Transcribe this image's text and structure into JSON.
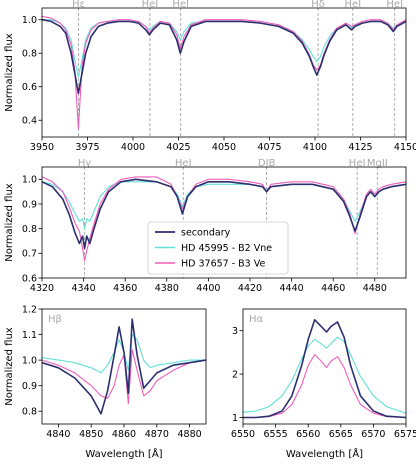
{
  "colors": {
    "secondary": "#2b2f6e",
    "hd45995": "#62e0d8",
    "hd37657": "#f05db9",
    "marker": "#9a9a9a"
  },
  "chart_data": [
    {
      "type": "line",
      "panel": "top",
      "xlim": [
        3950,
        4150
      ],
      "ylim": [
        0.3,
        1.07
      ],
      "xticks": [
        "3950",
        "3975",
        "4000",
        "4025",
        "4050",
        "4075",
        "4100",
        "4125",
        "4150"
      ],
      "yticks": [
        "0.4",
        "0.6",
        "0.8",
        "1.0"
      ],
      "ylabel": "Normalized flux",
      "xlabel": "",
      "line_markers": [
        {
          "x": 3970.1,
          "label": "Hε"
        },
        {
          "x": 4009.3,
          "label": "HeI"
        },
        {
          "x": 4026.2,
          "label": "HeI"
        },
        {
          "x": 4101.7,
          "label": "Hδ"
        },
        {
          "x": 4120.8,
          "label": "HeI"
        },
        {
          "x": 4143.8,
          "label": "HeI"
        }
      ],
      "x": [
        3950,
        3955,
        3960,
        3963,
        3966,
        3968,
        3970,
        3972,
        3974,
        3977,
        3981,
        3986,
        3992,
        3998,
        4003,
        4007,
        4009,
        4011,
        4015,
        4020,
        4024,
        4026,
        4028,
        4032,
        4040,
        4050,
        4060,
        4070,
        4080,
        4088,
        4093,
        4097,
        4099,
        4101,
        4103,
        4105,
        4108,
        4112,
        4117,
        4120,
        4122,
        4126,
        4131,
        4136,
        4140,
        4143,
        4145,
        4150
      ],
      "series": [
        {
          "name": "secondary",
          "values": [
            1.0,
            0.99,
            0.96,
            0.92,
            0.8,
            0.68,
            0.56,
            0.68,
            0.8,
            0.9,
            0.96,
            0.98,
            0.99,
            0.99,
            0.98,
            0.94,
            0.91,
            0.94,
            0.98,
            0.97,
            0.88,
            0.8,
            0.87,
            0.96,
            0.99,
            0.99,
            0.99,
            0.98,
            0.96,
            0.92,
            0.86,
            0.78,
            0.72,
            0.67,
            0.72,
            0.79,
            0.87,
            0.94,
            0.97,
            0.94,
            0.96,
            0.98,
            0.99,
            0.99,
            0.97,
            0.93,
            0.96,
            0.99
          ]
        },
        {
          "name": "HD 45995 - B2 Vne",
          "values": [
            1.0,
            1.0,
            0.98,
            0.95,
            0.88,
            0.76,
            0.66,
            0.76,
            0.88,
            0.95,
            0.98,
            0.99,
            0.99,
            0.99,
            0.99,
            0.96,
            0.94,
            0.96,
            0.99,
            0.98,
            0.93,
            0.88,
            0.93,
            0.98,
            0.99,
            0.99,
            0.99,
            0.98,
            0.96,
            0.93,
            0.88,
            0.82,
            0.78,
            0.75,
            0.78,
            0.84,
            0.9,
            0.95,
            0.97,
            0.95,
            0.97,
            0.98,
            0.99,
            0.99,
            0.98,
            0.95,
            0.97,
            0.99
          ]
        },
        {
          "name": "HD 37657 - B3 Ve",
          "values": [
            1.02,
            1.01,
            0.98,
            0.94,
            0.85,
            0.7,
            0.35,
            0.72,
            0.86,
            0.94,
            0.98,
            0.99,
            1.0,
            1.0,
            0.99,
            0.96,
            0.92,
            0.95,
            0.99,
            0.98,
            0.91,
            0.83,
            0.9,
            0.97,
            1.0,
            1.0,
            1.0,
            0.99,
            0.97,
            0.93,
            0.87,
            0.79,
            0.73,
            0.7,
            0.73,
            0.8,
            0.88,
            0.95,
            0.98,
            0.96,
            0.97,
            0.99,
            1.0,
            1.0,
            0.98,
            0.94,
            0.97,
            1.0
          ]
        }
      ]
    },
    {
      "type": "line",
      "panel": "middle",
      "xlim": [
        4320,
        4495
      ],
      "ylim": [
        0.6,
        1.05
      ],
      "xticks": [
        "4320",
        "4340",
        "4360",
        "4380",
        "4400",
        "4420",
        "4440",
        "4460",
        "4480"
      ],
      "yticks": [
        "0.6",
        "0.7",
        "0.8",
        "0.9",
        "1.0"
      ],
      "ylabel": "Normalized flux",
      "xlabel": "",
      "line_markers": [
        {
          "x": 4340.5,
          "label": "Hγ"
        },
        {
          "x": 4387.9,
          "label": "HeI"
        },
        {
          "x": 4428.0,
          "label": "DIB"
        },
        {
          "x": 4471.5,
          "label": "HeI"
        },
        {
          "x": 4481.2,
          "label": "MgII"
        }
      ],
      "legend": {
        "placement": "lower-center",
        "entries": [
          "secondary",
          "HD 45995 - B2 Vne",
          "HD 37657 - B3 Ve"
        ]
      },
      "x": [
        4320,
        4325,
        4330,
        4333,
        4336,
        4338,
        4339.5,
        4340.5,
        4341.5,
        4343,
        4345,
        4348,
        4352,
        4358,
        4365,
        4375,
        4382,
        4385,
        4387.5,
        4390,
        4394,
        4400,
        4410,
        4420,
        4426,
        4428,
        4430,
        4440,
        4450,
        4460,
        4465,
        4468,
        4470.5,
        4473,
        4476,
        4478,
        4480,
        4482,
        4484,
        4488,
        4495
      ],
      "series": [
        {
          "name": "secondary",
          "values": [
            0.99,
            0.97,
            0.92,
            0.86,
            0.78,
            0.74,
            0.77,
            0.72,
            0.77,
            0.74,
            0.8,
            0.88,
            0.95,
            0.99,
            1.0,
            0.99,
            0.97,
            0.93,
            0.86,
            0.93,
            0.97,
            0.99,
            0.99,
            0.98,
            0.97,
            0.95,
            0.97,
            0.98,
            0.98,
            0.96,
            0.91,
            0.85,
            0.79,
            0.85,
            0.93,
            0.95,
            0.93,
            0.95,
            0.96,
            0.97,
            0.98
          ]
        },
        {
          "name": "HD 45995 - B2 Vne",
          "values": [
            0.99,
            0.98,
            0.95,
            0.91,
            0.86,
            0.83,
            0.84,
            0.8,
            0.84,
            0.83,
            0.87,
            0.93,
            0.97,
            0.99,
            0.99,
            0.99,
            0.97,
            0.94,
            0.89,
            0.94,
            0.97,
            0.98,
            0.98,
            0.98,
            0.97,
            0.96,
            0.97,
            0.98,
            0.98,
            0.96,
            0.92,
            0.87,
            0.83,
            0.87,
            0.93,
            0.95,
            0.94,
            0.95,
            0.96,
            0.97,
            0.98
          ]
        },
        {
          "name": "HD 37657 - B3 Ve",
          "values": [
            1.01,
            0.99,
            0.95,
            0.89,
            0.82,
            0.79,
            0.72,
            0.67,
            0.71,
            0.76,
            0.82,
            0.9,
            0.96,
            1.0,
            1.01,
            1.01,
            0.98,
            0.93,
            0.88,
            0.93,
            0.98,
            1.0,
            1.0,
            0.99,
            0.98,
            0.95,
            0.98,
            0.99,
            0.99,
            0.97,
            0.92,
            0.86,
            0.78,
            0.86,
            0.94,
            0.96,
            0.94,
            0.96,
            0.97,
            0.98,
            0.99
          ]
        }
      ]
    },
    {
      "type": "line",
      "panel": "bottom-left",
      "label": "Hβ",
      "xlim": [
        4835,
        4885
      ],
      "ylim": [
        0.75,
        1.2
      ],
      "xticks": [
        "4840",
        "4850",
        "4860",
        "4870",
        "4880"
      ],
      "yticks": [
        "0.8",
        "0.9",
        "1.0",
        "1.1",
        "1.2"
      ],
      "ylabel": "Normalized flux",
      "xlabel": "Wavelength [Å]",
      "x": [
        4835,
        4840,
        4845,
        4850,
        4853,
        4855,
        4857,
        4858.5,
        4860,
        4861.3,
        4862.5,
        4864,
        4866,
        4868,
        4870,
        4875,
        4880,
        4885
      ],
      "series": [
        {
          "name": "secondary",
          "values": [
            0.99,
            0.97,
            0.93,
            0.86,
            0.79,
            0.88,
            1.02,
            1.13,
            1.03,
            0.87,
            1.16,
            1.02,
            0.89,
            0.92,
            0.95,
            0.98,
            0.99,
            1.0
          ]
        },
        {
          "name": "HD 45995 - B2 Vne",
          "values": [
            1.01,
            1.0,
            0.99,
            0.97,
            0.95,
            0.98,
            1.03,
            1.08,
            1.03,
            0.96,
            1.1,
            1.08,
            1.0,
            0.97,
            0.98,
            0.99,
            1.0,
            1.0
          ]
        },
        {
          "name": "HD 37657 - B3 Ve",
          "values": [
            1.0,
            0.98,
            0.95,
            0.9,
            0.86,
            0.85,
            0.9,
            0.98,
            1.02,
            0.83,
            1.04,
            0.96,
            0.86,
            0.88,
            0.92,
            0.96,
            0.99,
            1.0
          ]
        }
      ]
    },
    {
      "type": "line",
      "panel": "bottom-right",
      "label": "Hα",
      "xlim": [
        6550,
        6575
      ],
      "ylim": [
        0.85,
        3.5
      ],
      "xticks": [
        "6550",
        "6555",
        "6560",
        "6565",
        "6570",
        "6575"
      ],
      "yticks": [
        "1",
        "2",
        "3"
      ],
      "ylabel": "",
      "xlabel": "Wavelength [Å]",
      "x": [
        6550,
        6552,
        6554,
        6556,
        6557.5,
        6559,
        6560,
        6561,
        6562,
        6562.8,
        6563.5,
        6564.5,
        6565.5,
        6566.5,
        6568,
        6570,
        6572,
        6575
      ],
      "series": [
        {
          "name": "secondary",
          "values": [
            1.0,
            1.0,
            1.03,
            1.15,
            1.5,
            2.2,
            2.8,
            3.25,
            3.1,
            2.97,
            3.1,
            3.2,
            2.85,
            2.2,
            1.5,
            1.15,
            1.03,
            1.0
          ]
        },
        {
          "name": "HD 45995 - B2 Vne",
          "values": [
            1.12,
            1.15,
            1.25,
            1.5,
            1.85,
            2.35,
            2.65,
            2.8,
            2.7,
            2.6,
            2.7,
            2.85,
            2.75,
            2.45,
            1.95,
            1.5,
            1.25,
            1.1
          ]
        },
        {
          "name": "HD 37657 - B3 Ve",
          "values": [
            1.0,
            1.0,
            1.02,
            1.1,
            1.3,
            1.75,
            2.2,
            2.45,
            2.3,
            2.15,
            2.3,
            2.4,
            2.15,
            1.75,
            1.3,
            1.1,
            1.02,
            1.0
          ]
        }
      ]
    }
  ]
}
